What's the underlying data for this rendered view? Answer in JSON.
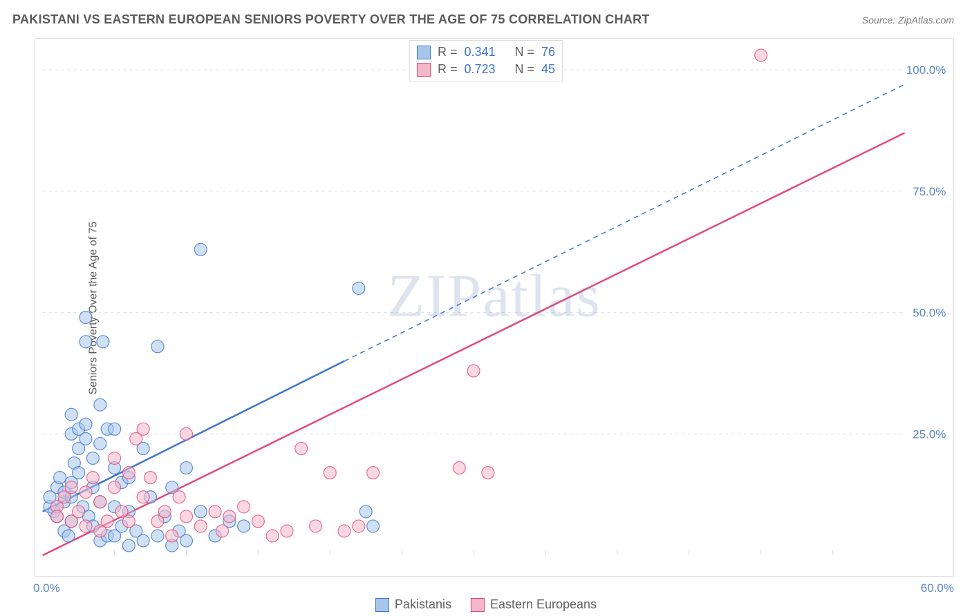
{
  "header": {
    "title": "PAKISTANI VS EASTERN EUROPEAN SENIORS POVERTY OVER THE AGE OF 75 CORRELATION CHART",
    "source_label": "Source: ZipAtlas.com"
  },
  "y_axis_label": "Seniors Poverty Over the Age of 75",
  "watermark": "ZIPatlas",
  "chart": {
    "type": "scatter",
    "background_color": "#ffffff",
    "grid_color": "#dcdcdc",
    "border_color": "#dcdcdc",
    "x_range": [
      0,
      60
    ],
    "y_range": [
      0,
      105
    ],
    "x_ticks": [
      0,
      60
    ],
    "x_tick_labels": [
      "0.0%",
      "60.0%"
    ],
    "x_minor_ticks": [
      5,
      10,
      15,
      20,
      25,
      30,
      35,
      40,
      45,
      50,
      55
    ],
    "y_ticks": [
      25,
      50,
      75,
      100
    ],
    "y_tick_labels": [
      "25.0%",
      "50.0%",
      "75.0%",
      "100.0%"
    ],
    "series": [
      {
        "name": "Pakistanis",
        "fill_color": "#a8c6ea",
        "stroke_color": "#3b74d1",
        "marker_radius": 9,
        "marker_opacity": 0.55,
        "R": "0.341",
        "N": "76",
        "trend": {
          "x1": 0,
          "y1": 9,
          "x2": 21,
          "y2": 40,
          "dash_x2": 60,
          "dash_y2": 97
        },
        "points": [
          [
            0.5,
            10
          ],
          [
            0.5,
            12
          ],
          [
            0.8,
            9
          ],
          [
            1,
            14
          ],
          [
            1,
            8
          ],
          [
            1.2,
            16
          ],
          [
            1.5,
            11
          ],
          [
            1.5,
            13
          ],
          [
            1.5,
            5
          ],
          [
            1.8,
            4
          ],
          [
            2,
            12
          ],
          [
            2,
            15
          ],
          [
            2,
            25
          ],
          [
            2,
            29
          ],
          [
            2,
            7
          ],
          [
            2.2,
            19
          ],
          [
            2.5,
            22
          ],
          [
            2.5,
            26
          ],
          [
            2.5,
            17
          ],
          [
            2.8,
            10
          ],
          [
            3,
            27
          ],
          [
            3,
            24
          ],
          [
            3,
            49
          ],
          [
            3,
            44
          ],
          [
            3.2,
            8
          ],
          [
            3.5,
            20
          ],
          [
            3.5,
            14
          ],
          [
            3.5,
            6
          ],
          [
            4,
            31
          ],
          [
            4,
            23
          ],
          [
            4,
            11
          ],
          [
            4,
            3
          ],
          [
            4.2,
            44
          ],
          [
            4.5,
            26
          ],
          [
            4.5,
            4
          ],
          [
            5,
            10
          ],
          [
            5,
            18
          ],
          [
            5,
            26
          ],
          [
            5,
            4
          ],
          [
            5.5,
            6
          ],
          [
            5.5,
            15
          ],
          [
            6,
            16
          ],
          [
            6,
            9
          ],
          [
            6,
            2
          ],
          [
            6.5,
            5
          ],
          [
            7,
            22
          ],
          [
            7,
            3
          ],
          [
            7.5,
            12
          ],
          [
            8,
            43
          ],
          [
            8,
            4
          ],
          [
            8.5,
            8
          ],
          [
            9,
            2
          ],
          [
            9,
            14
          ],
          [
            9.5,
            5
          ],
          [
            10,
            18
          ],
          [
            10,
            3
          ],
          [
            11,
            63
          ],
          [
            11,
            9
          ],
          [
            12,
            4
          ],
          [
            13,
            7
          ],
          [
            14,
            6
          ],
          [
            22,
            55
          ],
          [
            22.5,
            9
          ],
          [
            23,
            6
          ]
        ]
      },
      {
        "name": "Eastern Europeans",
        "fill_color": "#f4b8ca",
        "stroke_color": "#e6487a",
        "marker_radius": 9,
        "marker_opacity": 0.55,
        "R": "0.723",
        "N": "45",
        "trend": {
          "x1": 0,
          "y1": 0,
          "x2": 60,
          "y2": 87
        },
        "points": [
          [
            1,
            10
          ],
          [
            1,
            8
          ],
          [
            1.5,
            12
          ],
          [
            2,
            7
          ],
          [
            2,
            14
          ],
          [
            2.5,
            9
          ],
          [
            3,
            13
          ],
          [
            3,
            6
          ],
          [
            3.5,
            16
          ],
          [
            4,
            11
          ],
          [
            4,
            5
          ],
          [
            4.5,
            7
          ],
          [
            5,
            14
          ],
          [
            5,
            20
          ],
          [
            5.5,
            9
          ],
          [
            6,
            17
          ],
          [
            6,
            7
          ],
          [
            6.5,
            24
          ],
          [
            7,
            12
          ],
          [
            7,
            26
          ],
          [
            7.5,
            16
          ],
          [
            8,
            7
          ],
          [
            8.5,
            9
          ],
          [
            9,
            4
          ],
          [
            9.5,
            12
          ],
          [
            10,
            25
          ],
          [
            10,
            8
          ],
          [
            11,
            6
          ],
          [
            12,
            9
          ],
          [
            12.5,
            5
          ],
          [
            13,
            8
          ],
          [
            14,
            10
          ],
          [
            15,
            7
          ],
          [
            16,
            4
          ],
          [
            17,
            5
          ],
          [
            18,
            22
          ],
          [
            19,
            6
          ],
          [
            20,
            17
          ],
          [
            21,
            5
          ],
          [
            22,
            6
          ],
          [
            23,
            17
          ],
          [
            29,
            18
          ],
          [
            30,
            38
          ],
          [
            31,
            17
          ],
          [
            50,
            103
          ]
        ]
      }
    ]
  },
  "stats_legend": {
    "r_label": "R =",
    "n_label": "N ="
  },
  "colors": {
    "axis_text": "#5a87c8",
    "label_text": "#5a5a5a",
    "stats_value": "#3b74d1"
  }
}
